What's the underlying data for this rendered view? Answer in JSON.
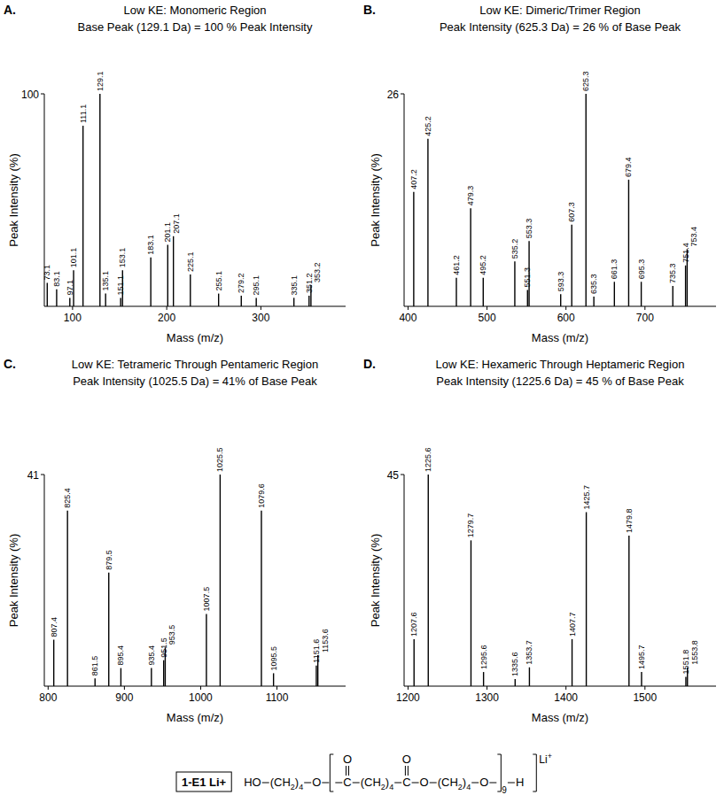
{
  "chart_data": [
    {
      "type": "spectrum",
      "panel_label": "A.",
      "title": "Low KE: Monomeric Region",
      "subtitle": "Base Peak (129.1 Da) = 100 % Peak Intensity",
      "x_label": "Mass (m/z)",
      "y_label": "Peak Intensity (%)",
      "x": [
        73.1,
        83.1,
        97.1,
        101.1,
        111.1,
        129.1,
        135.1,
        151.1,
        153.1,
        183.1,
        201.1,
        207.1,
        225.1,
        255.1,
        279.2,
        295.1,
        335.1,
        351.2,
        353.2
      ],
      "values": [
        11,
        8,
        4,
        17,
        85,
        100,
        6,
        4,
        17,
        23,
        29,
        33,
        15,
        6,
        5,
        4,
        4,
        5,
        10
      ],
      "xlim": [
        70,
        390
      ],
      "ylim": [
        0,
        100
      ],
      "xticks": [
        100,
        200,
        300
      ],
      "yticks": [
        100
      ],
      "color": "#000000"
    },
    {
      "type": "spectrum",
      "panel_label": "B.",
      "title": "Low KE: Dimeric/Trimer Region",
      "subtitle": "Peak Intensity (625.3 Da) = 26 % of Base Peak",
      "x_label": "Mass (m/z)",
      "y_label": "Peak Intensity (%)",
      "x": [
        407.2,
        425.2,
        461.2,
        479.3,
        495.2,
        535.2,
        551.3,
        553.3,
        593.3,
        607.3,
        625.3,
        635.3,
        661.3,
        679.4,
        695.3,
        735.3,
        751.4,
        753.4
      ],
      "values": [
        14,
        20.5,
        3.5,
        12,
        3.5,
        5.5,
        2,
        8,
        1.5,
        10,
        26,
        1.2,
        3,
        15.5,
        3,
        2.5,
        5,
        7
      ],
      "xlim": [
        395,
        790
      ],
      "ylim": [
        0,
        26
      ],
      "xticks": [
        400,
        500,
        600,
        700
      ],
      "yticks": [
        26
      ],
      "color": "#000000"
    },
    {
      "type": "spectrum",
      "panel_label": "C.",
      "title": "Low KE: Tetrameric Through Pentameric Region",
      "subtitle": "Peak Intensity (1025.5 Da) = 41% of Base Peak",
      "x_label": "Mass (m/z)",
      "y_label": "Peak Intensity (%)",
      "x": [
        807.4,
        825.4,
        861.5,
        879.5,
        895.4,
        935.4,
        951.5,
        953.5,
        1007.5,
        1025.5,
        1079.6,
        1095.5,
        1151.6,
        1153.6
      ],
      "values": [
        9,
        34,
        1.5,
        22,
        3.5,
        3.5,
        5,
        7.5,
        14,
        41,
        34,
        2.5,
        4,
        6
      ],
      "xlim": [
        795,
        1190
      ],
      "ylim": [
        0,
        41
      ],
      "xticks": [
        800,
        900,
        1000,
        1100
      ],
      "yticks": [
        41
      ],
      "color": "#000000"
    },
    {
      "type": "spectrum",
      "panel_label": "D.",
      "title": "Low KE: Hexameric Through Heptameric Region",
      "subtitle": "Peak Intensity (1225.6 Da) = 45 % of Base Peak",
      "x_label": "Mass (m/z)",
      "y_label": "Peak Intensity (%)",
      "x": [
        1207.6,
        1225.6,
        1279.7,
        1295.6,
        1335.6,
        1353.7,
        1407.7,
        1425.7,
        1479.8,
        1495.7,
        1551.8,
        1553.8
      ],
      "values": [
        10,
        45,
        31,
        3,
        1.5,
        4,
        10,
        37,
        32,
        3,
        2,
        4
      ],
      "xlim": [
        1195,
        1590
      ],
      "ylim": [
        0,
        45
      ],
      "xticks": [
        1200,
        1300,
        1400,
        1500
      ],
      "yticks": [
        45
      ],
      "color": "#000000"
    }
  ],
  "structure": {
    "label": "1-E1 Li+",
    "parts": [
      {
        "kind": "atom",
        "text": "HO"
      },
      {
        "kind": "chain",
        "text": "(CH",
        "h": "2",
        "close": ")",
        "n": "4"
      },
      {
        "kind": "atom",
        "text": "O"
      },
      {
        "kind": "open_bracket"
      },
      {
        "kind": "carbonyl",
        "c": "C",
        "o": "O"
      },
      {
        "kind": "chain",
        "text": "(CH",
        "h": "2",
        "close": ")",
        "n": "4"
      },
      {
        "kind": "carbonyl",
        "c": "C",
        "o": "O"
      },
      {
        "kind": "atom",
        "text": "O"
      },
      {
        "kind": "chain",
        "text": "(CH",
        "h": "2",
        "close": ")",
        "n": "4"
      },
      {
        "kind": "atom",
        "text": "O"
      },
      {
        "kind": "close_bracket",
        "n": "9"
      },
      {
        "kind": "atom",
        "text": "H"
      },
      {
        "kind": "ion",
        "text": "Li",
        "charge": "+"
      }
    ]
  }
}
